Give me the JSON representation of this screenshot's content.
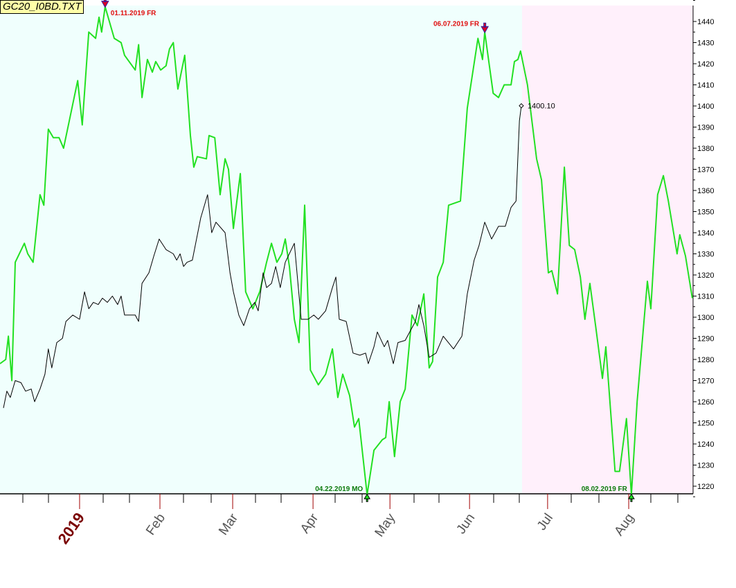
{
  "title": "GC20_I0BD.TXT",
  "colors": {
    "bg_history": "#f0fffd",
    "bg_projection": "#fff0fb",
    "green_line": "#22e022",
    "black_line": "#000000",
    "peak_label": "#e01010",
    "trough_label": "#0b7a0b",
    "year_label": "#7a0000",
    "month_label": "#555555"
  },
  "chart_data": {
    "type": "line",
    "title": "GC20_I0BD.TXT",
    "x_unit": "trading day index",
    "xlim": [
      0,
      182
    ],
    "ylim": [
      1214,
      1449
    ],
    "y_ticks": [
      1220,
      1230,
      1240,
      1250,
      1260,
      1270,
      1280,
      1290,
      1300,
      1310,
      1320,
      1330,
      1340,
      1350,
      1360,
      1370,
      1380,
      1390,
      1400,
      1410,
      1420,
      1430,
      1440
    ],
    "x_labels": [
      {
        "label": "2019",
        "x": 20.9,
        "major": true
      },
      {
        "label": "Feb",
        "x": 42.0
      },
      {
        "label": "Mar",
        "x": 61.1
      },
      {
        "label": "Apr",
        "x": 82.2
      },
      {
        "label": "May",
        "x": 102.4
      },
      {
        "label": "Jun",
        "x": 123.3
      },
      {
        "label": "Jul",
        "x": 143.8
      },
      {
        "label": "Aug",
        "x": 165.1
      }
    ],
    "projection_start_x": 137.1,
    "series": [
      {
        "name": "green-forecast",
        "points": [
          [
            0,
            1278
          ],
          [
            1.5,
            1280
          ],
          [
            2.2,
            1291
          ],
          [
            3.1,
            1270
          ],
          [
            4,
            1326
          ],
          [
            6.4,
            1335
          ],
          [
            7.3,
            1330
          ],
          [
            8.7,
            1326
          ],
          [
            10.5,
            1358
          ],
          [
            11.5,
            1353
          ],
          [
            12.7,
            1389
          ],
          [
            14,
            1385
          ],
          [
            15.5,
            1385
          ],
          [
            16.7,
            1380
          ],
          [
            18.2,
            1393
          ],
          [
            20.4,
            1412
          ],
          [
            21.6,
            1391
          ],
          [
            23.3,
            1435
          ],
          [
            25.1,
            1432
          ],
          [
            26,
            1442
          ],
          [
            26.7,
            1435
          ],
          [
            27.6,
            1447
          ],
          [
            30,
            1432
          ],
          [
            31.8,
            1430
          ],
          [
            32.7,
            1424
          ],
          [
            35.5,
            1417
          ],
          [
            36.4,
            1429
          ],
          [
            37.3,
            1404
          ],
          [
            38.7,
            1422
          ],
          [
            40,
            1416
          ],
          [
            40.9,
            1421
          ],
          [
            42.2,
            1417
          ],
          [
            43.6,
            1419
          ],
          [
            44.5,
            1427
          ],
          [
            45.5,
            1430
          ],
          [
            46.7,
            1408
          ],
          [
            48.5,
            1424
          ],
          [
            50,
            1386
          ],
          [
            50.9,
            1371
          ],
          [
            51.8,
            1376
          ],
          [
            54.2,
            1375
          ],
          [
            54.9,
            1386
          ],
          [
            56.4,
            1385
          ],
          [
            57.8,
            1358
          ],
          [
            59.1,
            1375
          ],
          [
            60,
            1370
          ],
          [
            61.3,
            1342
          ],
          [
            63.1,
            1368
          ],
          [
            64.5,
            1312
          ],
          [
            66.4,
            1304
          ],
          [
            68.2,
            1312
          ],
          [
            70,
            1326
          ],
          [
            71.3,
            1335
          ],
          [
            72.7,
            1326
          ],
          [
            74,
            1330
          ],
          [
            74.9,
            1337
          ],
          [
            76,
            1324
          ],
          [
            77.3,
            1299
          ],
          [
            78.5,
            1288
          ],
          [
            80,
            1353
          ],
          [
            81.5,
            1275
          ],
          [
            83.6,
            1268
          ],
          [
            85.5,
            1273
          ],
          [
            87.3,
            1285
          ],
          [
            88.7,
            1262
          ],
          [
            90,
            1273
          ],
          [
            91.8,
            1263
          ],
          [
            93.1,
            1248
          ],
          [
            94.2,
            1252
          ],
          [
            96.4,
            1216
          ],
          [
            98.2,
            1237
          ],
          [
            100.4,
            1242
          ],
          [
            101.3,
            1243
          ],
          [
            102.2,
            1260
          ],
          [
            103.6,
            1234
          ],
          [
            105.1,
            1260
          ],
          [
            106.4,
            1266
          ],
          [
            108.2,
            1301
          ],
          [
            109.6,
            1296
          ],
          [
            111.3,
            1311
          ],
          [
            112.7,
            1276
          ],
          [
            113.6,
            1279
          ],
          [
            114.9,
            1319
          ],
          [
            116.4,
            1326
          ],
          [
            117.8,
            1353
          ],
          [
            120.9,
            1355
          ],
          [
            122.7,
            1399
          ],
          [
            125.5,
            1432
          ],
          [
            126.7,
            1422
          ],
          [
            127.3,
            1435
          ],
          [
            129.5,
            1406
          ],
          [
            130.9,
            1404
          ],
          [
            132.4,
            1410
          ],
          [
            134.2,
            1410
          ],
          [
            135.1,
            1421
          ],
          [
            136,
            1422
          ],
          [
            136.7,
            1426
          ],
          [
            138.5,
            1410
          ],
          [
            140.9,
            1375
          ],
          [
            142.2,
            1365
          ],
          [
            144,
            1321
          ],
          [
            144.9,
            1322
          ],
          [
            146.4,
            1311
          ],
          [
            148.2,
            1371
          ],
          [
            149.5,
            1334
          ],
          [
            150.9,
            1332
          ],
          [
            152.4,
            1319
          ],
          [
            153.6,
            1299
          ],
          [
            154.9,
            1316
          ],
          [
            156.4,
            1296
          ],
          [
            158.2,
            1271
          ],
          [
            159.1,
            1286
          ],
          [
            160.9,
            1242
          ],
          [
            161.5,
            1227
          ],
          [
            162.7,
            1227
          ],
          [
            164.5,
            1252
          ],
          [
            165.8,
            1216
          ],
          [
            167.3,
            1260
          ],
          [
            170,
            1317
          ],
          [
            170.9,
            1304
          ],
          [
            172.7,
            1358
          ],
          [
            174.2,
            1367
          ],
          [
            175.5,
            1355
          ],
          [
            177.8,
            1330
          ],
          [
            178.5,
            1339
          ],
          [
            180,
            1329
          ],
          [
            181.8,
            1309
          ]
        ]
      },
      {
        "name": "black-price",
        "points": [
          [
            0.9,
            1257
          ],
          [
            1.8,
            1265
          ],
          [
            2.7,
            1262
          ],
          [
            4,
            1270
          ],
          [
            5.5,
            1269
          ],
          [
            6.7,
            1265
          ],
          [
            8.2,
            1266
          ],
          [
            9.1,
            1260
          ],
          [
            10.5,
            1266
          ],
          [
            11.8,
            1273
          ],
          [
            12.7,
            1285
          ],
          [
            13.6,
            1276
          ],
          [
            14.9,
            1288
          ],
          [
            16.4,
            1290
          ],
          [
            17.3,
            1298
          ],
          [
            19.1,
            1301
          ],
          [
            20.9,
            1299
          ],
          [
            22.2,
            1312
          ],
          [
            23.3,
            1304
          ],
          [
            24.5,
            1307
          ],
          [
            25.8,
            1306
          ],
          [
            26.9,
            1309
          ],
          [
            28.2,
            1307
          ],
          [
            29.5,
            1310
          ],
          [
            30.9,
            1306
          ],
          [
            31.8,
            1310
          ],
          [
            32.7,
            1301
          ],
          [
            35.5,
            1301
          ],
          [
            36.4,
            1298
          ],
          [
            37.3,
            1316
          ],
          [
            39.1,
            1321
          ],
          [
            40.4,
            1329
          ],
          [
            41.8,
            1337
          ],
          [
            43.6,
            1332
          ],
          [
            45.5,
            1330
          ],
          [
            46.4,
            1327
          ],
          [
            47.3,
            1330
          ],
          [
            48.2,
            1324
          ],
          [
            49.1,
            1326
          ],
          [
            50.5,
            1327
          ],
          [
            52.7,
            1347
          ],
          [
            54.5,
            1358
          ],
          [
            55.6,
            1340
          ],
          [
            56.7,
            1345
          ],
          [
            59.1,
            1340
          ],
          [
            60.4,
            1321
          ],
          [
            61.3,
            1312
          ],
          [
            62.7,
            1301
          ],
          [
            64,
            1296
          ],
          [
            65.5,
            1304
          ],
          [
            66.9,
            1307
          ],
          [
            67.8,
            1303
          ],
          [
            69.1,
            1321
          ],
          [
            70,
            1314
          ],
          [
            71.3,
            1316
          ],
          [
            72.4,
            1324
          ],
          [
            73.6,
            1314
          ],
          [
            74.9,
            1326
          ],
          [
            77.3,
            1335
          ],
          [
            79.1,
            1299
          ],
          [
            80.9,
            1299
          ],
          [
            82.4,
            1301
          ],
          [
            83.6,
            1299
          ],
          [
            85.5,
            1303
          ],
          [
            87.3,
            1314
          ],
          [
            88.2,
            1319
          ],
          [
            89.1,
            1299
          ],
          [
            90.9,
            1298
          ],
          [
            92.7,
            1283
          ],
          [
            94.5,
            1282
          ],
          [
            96,
            1283
          ],
          [
            96.7,
            1278
          ],
          [
            98.2,
            1286
          ],
          [
            99.1,
            1293
          ],
          [
            100.9,
            1286
          ],
          [
            101.8,
            1289
          ],
          [
            103.3,
            1278
          ],
          [
            104.5,
            1288
          ],
          [
            106.4,
            1289
          ],
          [
            107.3,
            1292
          ],
          [
            109.1,
            1298
          ],
          [
            110,
            1306
          ],
          [
            111.3,
            1296
          ],
          [
            112.7,
            1281
          ],
          [
            114.5,
            1283
          ],
          [
            116.4,
            1291
          ],
          [
            119.1,
            1285
          ],
          [
            121.3,
            1291
          ],
          [
            122.7,
            1311
          ],
          [
            124.5,
            1327
          ],
          [
            125.8,
            1334
          ],
          [
            127.3,
            1345
          ],
          [
            129.1,
            1337
          ],
          [
            130.9,
            1343
          ],
          [
            132.7,
            1343
          ],
          [
            134.2,
            1352
          ],
          [
            135.5,
            1355
          ],
          [
            136.4,
            1393
          ],
          [
            136.9,
            1400.1
          ]
        ]
      }
    ],
    "annotations": [
      {
        "type": "peak",
        "label": "01.11.2019 FR",
        "x": 27.6,
        "y": 1447
      },
      {
        "type": "peak",
        "label": "06.07.2019 FR",
        "x": 127.3,
        "y": 1435
      },
      {
        "type": "trough",
        "label": "04.22.2019 MO",
        "x": 96.4,
        "y": 1216
      },
      {
        "type": "trough",
        "label": "08.02.2019 FR",
        "x": 165.8,
        "y": 1216
      },
      {
        "type": "last-value",
        "label": "1400.10",
        "x": 136.9,
        "y": 1400.1
      }
    ]
  }
}
